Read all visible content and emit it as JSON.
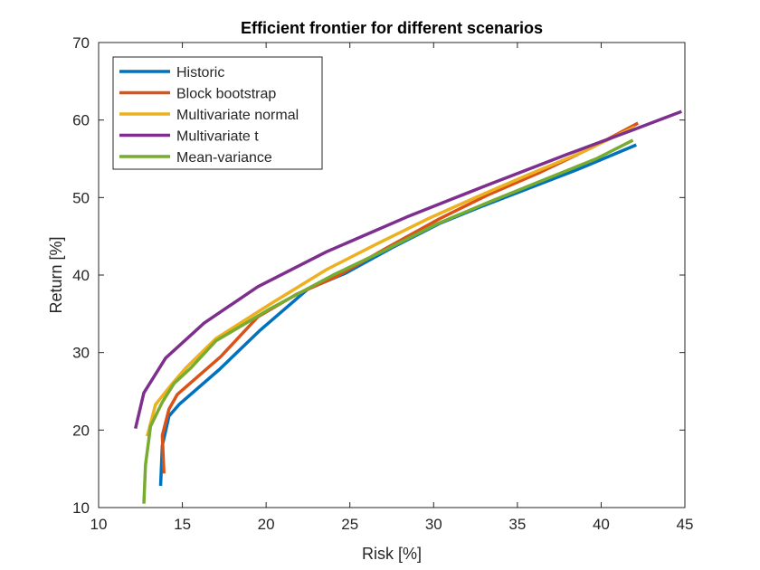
{
  "chart_data": {
    "type": "line",
    "title": "Efficient frontier for different scenarios",
    "xlabel": "Risk [%]",
    "ylabel": "Return [%]",
    "xlim": [
      10,
      45
    ],
    "ylim": [
      10,
      70
    ],
    "xticks": [
      10,
      15,
      20,
      25,
      30,
      35,
      40,
      45
    ],
    "yticks": [
      10,
      20,
      30,
      40,
      50,
      60,
      70
    ],
    "grid": false,
    "legend_position": "top-left",
    "series": [
      {
        "name": "Historic",
        "color": "#0072BD",
        "points": [
          [
            13.7,
            12.8
          ],
          [
            13.8,
            18.0
          ],
          [
            14.2,
            21.8
          ],
          [
            14.8,
            23.3
          ],
          [
            17.2,
            27.8
          ],
          [
            19.6,
            32.8
          ],
          [
            22.5,
            38.2
          ],
          [
            24.7,
            40.2
          ],
          [
            27.5,
            43.5
          ],
          [
            30.4,
            46.7
          ],
          [
            32.8,
            48.8
          ],
          [
            35.8,
            51.3
          ],
          [
            38.8,
            53.8
          ],
          [
            42.1,
            56.8
          ]
        ]
      },
      {
        "name": "Block bootstrap",
        "color": "#D95319",
        "points": [
          [
            13.9,
            14.4
          ],
          [
            13.8,
            19.3
          ],
          [
            14.2,
            22.7
          ],
          [
            14.7,
            24.6
          ],
          [
            17.3,
            29.5
          ],
          [
            19.5,
            34.6
          ],
          [
            21.8,
            37.5
          ],
          [
            24.2,
            39.8
          ],
          [
            27.2,
            43.5
          ],
          [
            30.3,
            47.2
          ],
          [
            33.2,
            50.3
          ],
          [
            36.4,
            53.3
          ],
          [
            39.5,
            56.5
          ],
          [
            42.2,
            59.6
          ]
        ]
      },
      {
        "name": "Multivariate normal",
        "color": "#EDB120",
        "points": [
          [
            12.9,
            19.2
          ],
          [
            13.4,
            23.3
          ],
          [
            14.4,
            26.0
          ],
          [
            15.2,
            28.0
          ],
          [
            17.0,
            31.8
          ],
          [
            20.2,
            36.2
          ],
          [
            23.6,
            40.7
          ],
          [
            26.6,
            44.0
          ],
          [
            29.7,
            47.3
          ],
          [
            32.6,
            50.1
          ],
          [
            35.6,
            52.9
          ],
          [
            38.7,
            55.7
          ],
          [
            42.0,
            59.1
          ]
        ]
      },
      {
        "name": "Multivariate t",
        "color": "#7E2F8E",
        "points": [
          [
            12.2,
            20.2
          ],
          [
            12.7,
            24.8
          ],
          [
            14.0,
            29.3
          ],
          [
            16.3,
            33.8
          ],
          [
            19.5,
            38.5
          ],
          [
            23.6,
            43.0
          ],
          [
            28.4,
            47.5
          ],
          [
            33.2,
            51.6
          ],
          [
            38.0,
            55.6
          ],
          [
            42.0,
            58.8
          ],
          [
            44.8,
            61.1
          ]
        ]
      },
      {
        "name": "Mean-variance",
        "color": "#77AC30",
        "points": [
          [
            12.7,
            10.5
          ],
          [
            12.8,
            15.5
          ],
          [
            13.1,
            20.5
          ],
          [
            13.8,
            23.6
          ],
          [
            14.5,
            26.0
          ],
          [
            15.5,
            28.0
          ],
          [
            17.0,
            31.5
          ],
          [
            20.2,
            35.6
          ],
          [
            24.0,
            40.0
          ],
          [
            26.9,
            43.0
          ],
          [
            30.2,
            46.6
          ],
          [
            33.4,
            49.5
          ],
          [
            36.6,
            52.3
          ],
          [
            39.7,
            55.0
          ],
          [
            41.9,
            57.4
          ]
        ]
      }
    ]
  }
}
